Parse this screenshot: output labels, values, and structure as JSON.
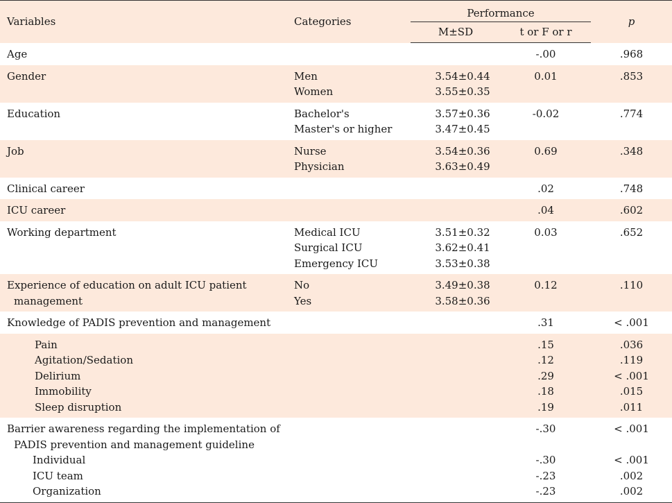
{
  "header": {
    "variables": "Variables",
    "categories": "Categories",
    "performance": "Performance",
    "msd": "M±SD",
    "tfr": "t or F or r",
    "p": "p"
  },
  "rows": [
    {
      "shade": false,
      "var": [
        "Age"
      ],
      "cat": [],
      "msd": [],
      "t": [
        "-.00"
      ],
      "p": [
        ".968"
      ]
    },
    {
      "shade": true,
      "var": [
        "Gender"
      ],
      "cat": [
        "Men",
        "Women"
      ],
      "msd": [
        "3.54±0.44",
        "3.55±0.35"
      ],
      "t": [
        "0.01"
      ],
      "p": [
        ".853"
      ]
    },
    {
      "shade": false,
      "var": [
        "Education"
      ],
      "cat": [
        "Bachelor's",
        "Master's or higher"
      ],
      "msd": [
        "3.57±0.36",
        "3.47±0.45"
      ],
      "t": [
        "-0.02"
      ],
      "p": [
        ".774"
      ]
    },
    {
      "shade": true,
      "var": [
        "Job"
      ],
      "cat": [
        "Nurse",
        "Physician"
      ],
      "msd": [
        "3.54±0.36",
        "3.63±0.49"
      ],
      "t": [
        "0.69"
      ],
      "p": [
        ".348"
      ]
    },
    {
      "shade": false,
      "var": [
        "Clinical career"
      ],
      "cat": [],
      "msd": [],
      "t": [
        ".02"
      ],
      "p": [
        ".748"
      ]
    },
    {
      "shade": true,
      "var": [
        "ICU career"
      ],
      "cat": [],
      "msd": [],
      "t": [
        ".04"
      ],
      "p": [
        ".602"
      ]
    },
    {
      "shade": false,
      "var": [
        "Working department"
      ],
      "cat": [
        "Medical ICU",
        "Surgical ICU",
        "Emergency ICU"
      ],
      "msd": [
        "3.51±0.32",
        "3.62±0.41",
        "3.53±0.38"
      ],
      "t": [
        "0.03"
      ],
      "p": [
        ".652"
      ]
    },
    {
      "shade": true,
      "var": [
        "Experience of education on adult ICU patient",
        "management"
      ],
      "cat": [
        "No",
        "Yes"
      ],
      "msd": [
        "3.49±0.38",
        "3.58±0.36"
      ],
      "t": [
        "0.12"
      ],
      "p": [
        ".110"
      ]
    },
    {
      "shade": false,
      "var": [
        "Knowledge of PADIS prevention and management"
      ],
      "cat": [],
      "msd": [],
      "t": [
        ".31"
      ],
      "p": [
        "< .001"
      ]
    },
    {
      "shade": true,
      "sub": true,
      "var": [
        "Pain",
        "Agitation/Sedation",
        "Delirium",
        "Immobility",
        "Sleep disruption"
      ],
      "cat": [],
      "msd": [],
      "t": [
        ".15",
        ".12",
        ".29",
        ".18",
        ".19"
      ],
      "p": [
        ".036",
        ".119",
        "< .001",
        ".015",
        ".011"
      ]
    },
    {
      "shade": false,
      "barrier": true,
      "var": [
        "Barrier awareness regarding the implementation of",
        "PADIS prevention and management guideline",
        "Individual",
        "ICU team",
        "Organization"
      ],
      "cat": [],
      "msd": [],
      "t": [
        "-.30",
        "",
        "-.30",
        "-.23",
        "-.23"
      ],
      "p": [
        "< .001",
        "",
        "< .001",
        ".002",
        ".002"
      ]
    }
  ]
}
